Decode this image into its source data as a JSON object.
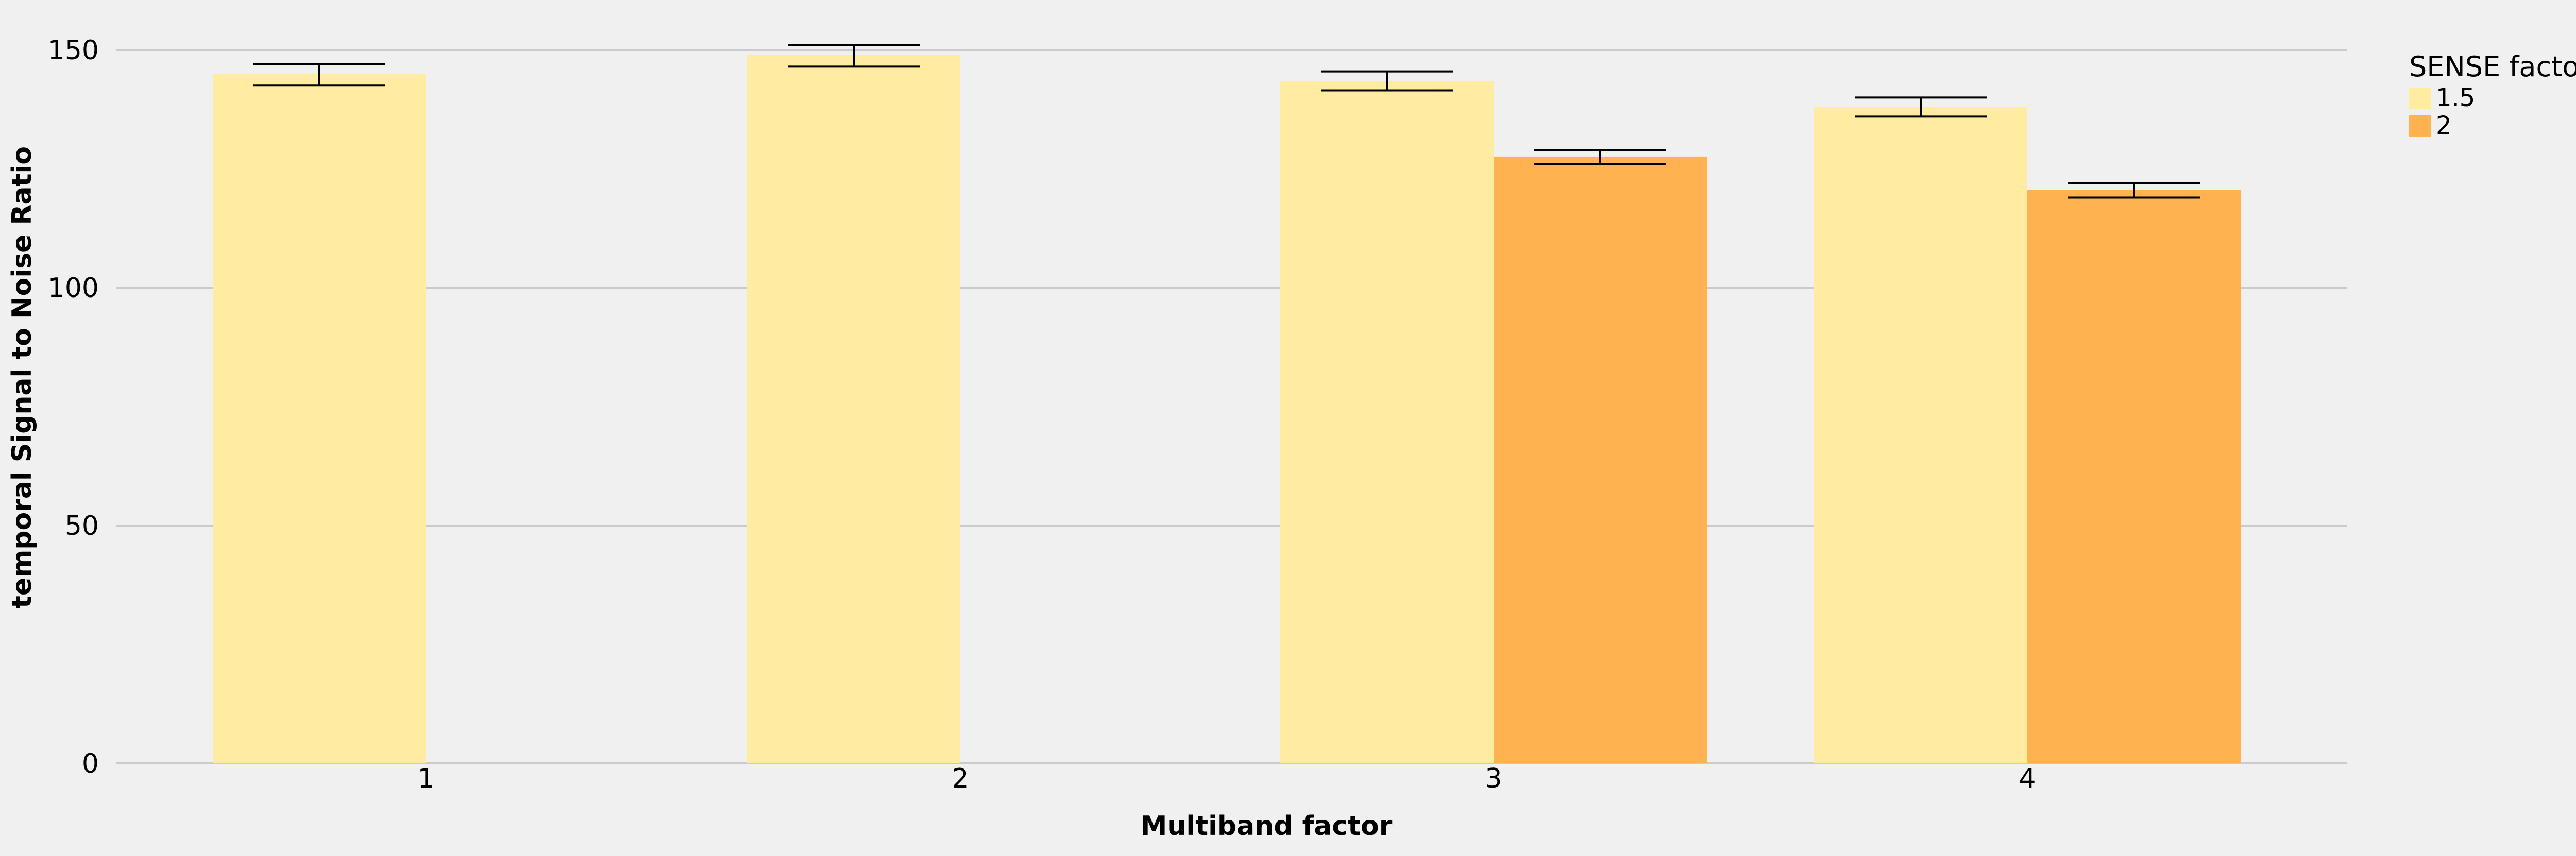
{
  "chart_data": {
    "type": "bar",
    "xlabel": "Multiband factor",
    "ylabel": "temporal Signal to Noise Ratio",
    "categories": [
      "1",
      "2",
      "3",
      "4"
    ],
    "ylim": [
      0,
      155
    ],
    "yticks": [
      0,
      50,
      100,
      150
    ],
    "grid": "horizontal",
    "legend": {
      "title": "SENSE factor",
      "placement": "right"
    },
    "series": [
      {
        "name": "1.5",
        "color": "#ffeca0",
        "values": [
          145,
          149,
          143.5,
          138
        ],
        "err_low": [
          142.5,
          146.5,
          141.5,
          136
        ],
        "err_high": [
          147,
          151,
          145.5,
          140
        ]
      },
      {
        "name": "2",
        "color": "#ffb24f",
        "values": [
          null,
          null,
          127.5,
          120.5
        ],
        "err_low": [
          null,
          null,
          126,
          119
        ],
        "err_high": [
          null,
          null,
          129,
          122
        ]
      }
    ],
    "error_bar_color": "#000000",
    "grid_color": "#cbcbcb"
  }
}
